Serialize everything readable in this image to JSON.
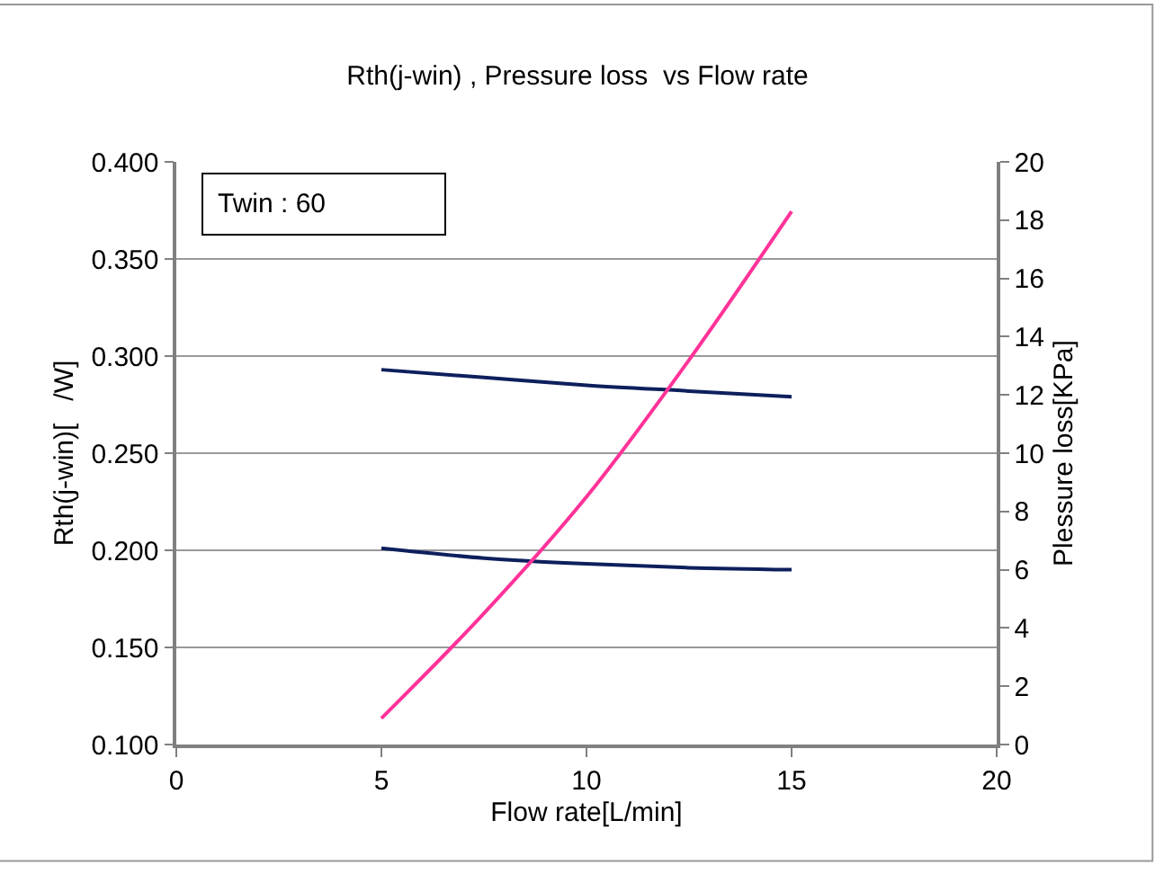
{
  "chart_data": {
    "type": "line",
    "title": "Rth(j-win) , Pressure loss  vs Flow rate",
    "xlabel": "Flow rate[L/min]",
    "ylabel": "Rth(j-win)[   /W]",
    "y2label": "Plessure loss[KPa]",
    "x": [
      5,
      7.5,
      10,
      12.5,
      15
    ],
    "series": [
      {
        "color": "#0d1f5c",
        "values": [
          0.293,
          0.289,
          0.285,
          0.282,
          0.279
        ]
      },
      {
        "color": "#0d1f5c",
        "values": [
          0.201,
          0.196,
          0.193,
          0.191,
          0.19
        ]
      },
      {
        "color": "#ff3399",
        "axis": "y2",
        "values": [
          0.9,
          4.5,
          8.5,
          13.2,
          18.3
        ]
      }
    ],
    "xlim": [
      0,
      20
    ],
    "xticks": [
      0,
      5,
      10,
      15,
      20
    ],
    "ylim": [
      0.1,
      0.4
    ],
    "yticks": [
      {
        "value": 0.1,
        "label": "0.100"
      },
      {
        "value": 0.15,
        "label": "0.150"
      },
      {
        "value": 0.2,
        "label": "0.200"
      },
      {
        "value": 0.25,
        "label": "0.250"
      },
      {
        "value": 0.3,
        "label": "0.300"
      },
      {
        "value": 0.35,
        "label": "0.350"
      },
      {
        "value": 0.4,
        "label": "0.400"
      }
    ],
    "y2lim": [
      0,
      20
    ],
    "y2ticks": [
      0,
      2,
      4,
      6,
      8,
      10,
      12,
      14,
      16,
      18,
      20
    ],
    "grid": "y",
    "marker": "none",
    "line_style": "solid",
    "annotations": [
      "Twin : 60"
    ]
  }
}
